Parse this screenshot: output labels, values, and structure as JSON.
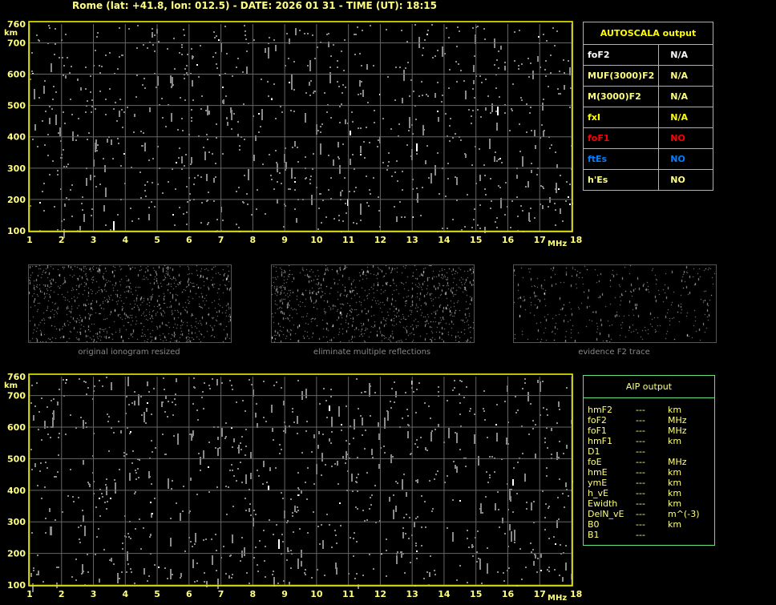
{
  "title": "Rome (lat: +41.8, lon: 012.5) - DATE: 2026 01 31 - TIME (UT): 18:15",
  "chart_data": [
    {
      "type": "scatter",
      "name": "ionogram-top",
      "xlabel": "MHz",
      "ylabel": "km",
      "xlim": [
        1,
        18
      ],
      "ylim": [
        100,
        760
      ],
      "xticks": [
        "1",
        "2",
        "3",
        "4",
        "5",
        "6",
        "7",
        "8",
        "9",
        "10",
        "11",
        "12",
        "13",
        "14",
        "15",
        "16",
        "17",
        "18"
      ],
      "yticks": [
        "100",
        "200",
        "300",
        "400",
        "500",
        "600",
        "700",
        "760"
      ],
      "grid": true
    },
    {
      "type": "scatter",
      "name": "ionogram-bottom",
      "xlabel": "MHz",
      "ylabel": "km",
      "xlim": [
        1,
        18
      ],
      "ylim": [
        100,
        760
      ],
      "xticks": [
        "1",
        "2",
        "3",
        "4",
        "5",
        "6",
        "7",
        "8",
        "9",
        "10",
        "11",
        "12",
        "13",
        "14",
        "15",
        "16",
        "17",
        "18"
      ],
      "yticks": [
        "100",
        "200",
        "300",
        "400",
        "500",
        "600",
        "700",
        "760"
      ],
      "grid": true
    }
  ],
  "thumbnails": [
    {
      "caption": "original ionogram resized"
    },
    {
      "caption": "eliminate multiple reflections"
    },
    {
      "caption": "evidence F2 trace"
    }
  ],
  "autoscala": {
    "header": "AUTOSCALA output",
    "rows": [
      {
        "label": "foF2",
        "value": "N/A",
        "color": "#ffffff"
      },
      {
        "label": "MUF(3000)F2",
        "value": "N/A",
        "color": "#ffff80"
      },
      {
        "label": "M(3000)F2",
        "value": "N/A",
        "color": "#ffff80"
      },
      {
        "label": "fxI",
        "value": "N/A",
        "color": "#ffff00"
      },
      {
        "label": "foF1",
        "value": "NO",
        "color": "#ff0000"
      },
      {
        "label": "ftEs",
        "value": "NO",
        "color": "#0080ff"
      },
      {
        "label": "h'Es",
        "value": "NO",
        "color": "#ffff80"
      }
    ]
  },
  "aip": {
    "header": "AIP output",
    "rows": [
      {
        "label": "hmF2",
        "value": "---",
        "unit": "km"
      },
      {
        "label": "foF2",
        "value": "---",
        "unit": "MHz"
      },
      {
        "label": "foF1",
        "value": "---",
        "unit": "MHz"
      },
      {
        "label": "hmF1",
        "value": "---",
        "unit": "km"
      },
      {
        "label": "D1",
        "value": "---",
        "unit": ""
      },
      {
        "label": "foE",
        "value": "---",
        "unit": "MHz"
      },
      {
        "label": "hmE",
        "value": "---",
        "unit": "km"
      },
      {
        "label": "ymE",
        "value": "---",
        "unit": "km"
      },
      {
        "label": "h_vE",
        "value": "---",
        "unit": "km"
      },
      {
        "label": "Ewidth",
        "value": "---",
        "unit": "km"
      },
      {
        "label": "DelN_vE",
        "value": "---",
        "unit": "m^(-3)"
      },
      {
        "label": "B0",
        "value": "---",
        "unit": "km"
      },
      {
        "label": "B1",
        "value": "---",
        "unit": ""
      }
    ]
  }
}
